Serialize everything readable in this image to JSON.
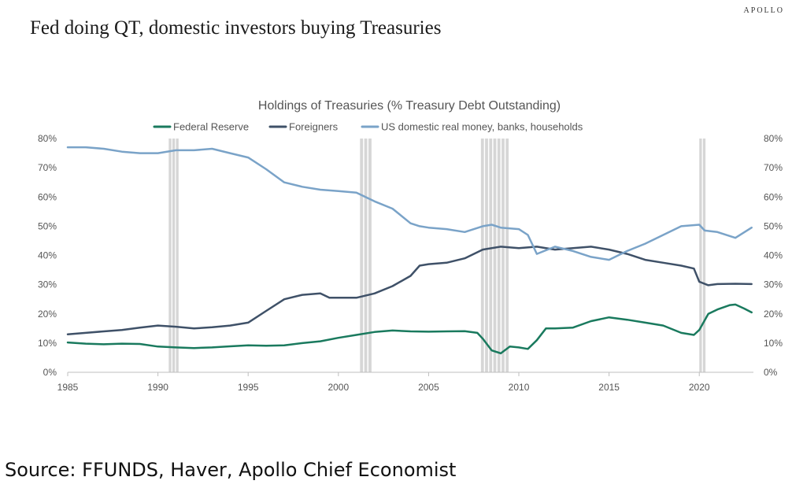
{
  "header": {
    "brand": "APOLLO",
    "title": "Fed doing QT, domestic investors buying Treasuries"
  },
  "footer": {
    "source": "Source: FFUNDS, Haver, Apollo Chief Economist"
  },
  "chart_data": {
    "type": "line",
    "title": "Holdings of Treasuries (% Treasury Debt Outstanding)",
    "xlim": [
      1985,
      2023
    ],
    "ylim": [
      0,
      80
    ],
    "y_ticks": [
      "0%",
      "10%",
      "20%",
      "30%",
      "40%",
      "50%",
      "60%",
      "70%",
      "80%"
    ],
    "y_tick_values": [
      0,
      10,
      20,
      30,
      40,
      50,
      60,
      70,
      80
    ],
    "x_ticks": [
      "1985",
      "1990",
      "1995",
      "2000",
      "2005",
      "2010",
      "2015",
      "2020"
    ],
    "x_tick_values": [
      1985,
      1990,
      1995,
      2000,
      2005,
      2010,
      2015,
      2020
    ],
    "legend_position": "top",
    "grid": false,
    "dual_axis": true,
    "recessions": [
      [
        1990.6,
        1991.2
      ],
      [
        2001.2,
        2001.9
      ],
      [
        2007.9,
        2009.5
      ],
      [
        2020.0,
        2020.4
      ]
    ],
    "series": [
      {
        "name": "Federal Reserve",
        "color": "#1a7a5e",
        "points": [
          [
            1985,
            10.2
          ],
          [
            1986,
            9.8
          ],
          [
            1987,
            9.6
          ],
          [
            1988,
            9.8
          ],
          [
            1989,
            9.7
          ],
          [
            1990,
            8.8
          ],
          [
            1991,
            8.5
          ],
          [
            1992,
            8.3
          ],
          [
            1993,
            8.5
          ],
          [
            1994,
            8.9
          ],
          [
            1995,
            9.2
          ],
          [
            1996,
            9.1
          ],
          [
            1997,
            9.2
          ],
          [
            1998,
            10.0
          ],
          [
            1999,
            10.6
          ],
          [
            2000,
            11.8
          ],
          [
            2001,
            12.8
          ],
          [
            2002,
            13.8
          ],
          [
            2003,
            14.3
          ],
          [
            2004,
            14.0
          ],
          [
            2005,
            13.9
          ],
          [
            2006,
            14.0
          ],
          [
            2007,
            14.1
          ],
          [
            2007.7,
            13.5
          ],
          [
            2008,
            11.5
          ],
          [
            2008.5,
            7.5
          ],
          [
            2009,
            6.5
          ],
          [
            2009.5,
            8.8
          ],
          [
            2010,
            8.5
          ],
          [
            2010.5,
            8.0
          ],
          [
            2011,
            11.0
          ],
          [
            2011.5,
            15.0
          ],
          [
            2012,
            15.0
          ],
          [
            2013,
            15.3
          ],
          [
            2014,
            17.5
          ],
          [
            2015,
            18.8
          ],
          [
            2016,
            18.0
          ],
          [
            2017,
            17.0
          ],
          [
            2018,
            16.0
          ],
          [
            2019,
            13.5
          ],
          [
            2019.7,
            12.8
          ],
          [
            2020,
            14.5
          ],
          [
            2020.5,
            20.0
          ],
          [
            2021,
            21.5
          ],
          [
            2021.7,
            23.0
          ],
          [
            2022,
            23.2
          ],
          [
            2022.5,
            21.8
          ],
          [
            2022.9,
            20.5
          ]
        ]
      },
      {
        "name": "Foreigners",
        "color": "#3f5168",
        "points": [
          [
            1985,
            13.0
          ],
          [
            1986,
            13.5
          ],
          [
            1987,
            14.0
          ],
          [
            1988,
            14.5
          ],
          [
            1989,
            15.3
          ],
          [
            1990,
            16.0
          ],
          [
            1991,
            15.6
          ],
          [
            1992,
            15.0
          ],
          [
            1993,
            15.4
          ],
          [
            1994,
            16.0
          ],
          [
            1995,
            17.0
          ],
          [
            1996,
            21.0
          ],
          [
            1997,
            25.0
          ],
          [
            1998,
            26.5
          ],
          [
            1999,
            27.0
          ],
          [
            1999.5,
            25.5
          ],
          [
            2000,
            25.5
          ],
          [
            2001,
            25.5
          ],
          [
            2002,
            27.0
          ],
          [
            2003,
            29.5
          ],
          [
            2004,
            33.0
          ],
          [
            2004.5,
            36.5
          ],
          [
            2005,
            37.0
          ],
          [
            2006,
            37.5
          ],
          [
            2007,
            39.0
          ],
          [
            2008,
            42.0
          ],
          [
            2009,
            43.0
          ],
          [
            2010,
            42.5
          ],
          [
            2011,
            43.0
          ],
          [
            2012,
            42.0
          ],
          [
            2013,
            42.5
          ],
          [
            2014,
            43.0
          ],
          [
            2015,
            42.0
          ],
          [
            2016,
            40.5
          ],
          [
            2017,
            38.5
          ],
          [
            2018,
            37.5
          ],
          [
            2019,
            36.5
          ],
          [
            2019.7,
            35.5
          ],
          [
            2020,
            31.0
          ],
          [
            2020.5,
            29.8
          ],
          [
            2021,
            30.2
          ],
          [
            2022,
            30.3
          ],
          [
            2022.9,
            30.2
          ]
        ]
      },
      {
        "name": "US domestic real money, banks, households",
        "color": "#7aa3c8",
        "points": [
          [
            1985,
            77.0
          ],
          [
            1986,
            77.0
          ],
          [
            1987,
            76.5
          ],
          [
            1988,
            75.5
          ],
          [
            1989,
            75.0
          ],
          [
            1990,
            75.0
          ],
          [
            1991,
            76.0
          ],
          [
            1992,
            76.0
          ],
          [
            1993,
            76.5
          ],
          [
            1994,
            75.0
          ],
          [
            1995,
            73.5
          ],
          [
            1996,
            69.5
          ],
          [
            1997,
            65.0
          ],
          [
            1998,
            63.5
          ],
          [
            1999,
            62.5
          ],
          [
            2000,
            62.0
          ],
          [
            2001,
            61.5
          ],
          [
            2002,
            58.5
          ],
          [
            2003,
            56.0
          ],
          [
            2004,
            51.0
          ],
          [
            2004.5,
            50.0
          ],
          [
            2005,
            49.5
          ],
          [
            2006,
            49.0
          ],
          [
            2007,
            48.0
          ],
          [
            2008,
            50.0
          ],
          [
            2008.5,
            50.5
          ],
          [
            2009,
            49.5
          ],
          [
            2010,
            49.0
          ],
          [
            2010.5,
            47.0
          ],
          [
            2011,
            40.5
          ],
          [
            2012,
            43.0
          ],
          [
            2013,
            41.5
          ],
          [
            2014,
            39.5
          ],
          [
            2015,
            38.5
          ],
          [
            2016,
            41.5
          ],
          [
            2017,
            44.0
          ],
          [
            2018,
            47.0
          ],
          [
            2019,
            50.0
          ],
          [
            2020,
            50.5
          ],
          [
            2020.3,
            48.5
          ],
          [
            2021,
            48.0
          ],
          [
            2022,
            46.0
          ],
          [
            2022.9,
            49.5
          ]
        ]
      }
    ]
  }
}
